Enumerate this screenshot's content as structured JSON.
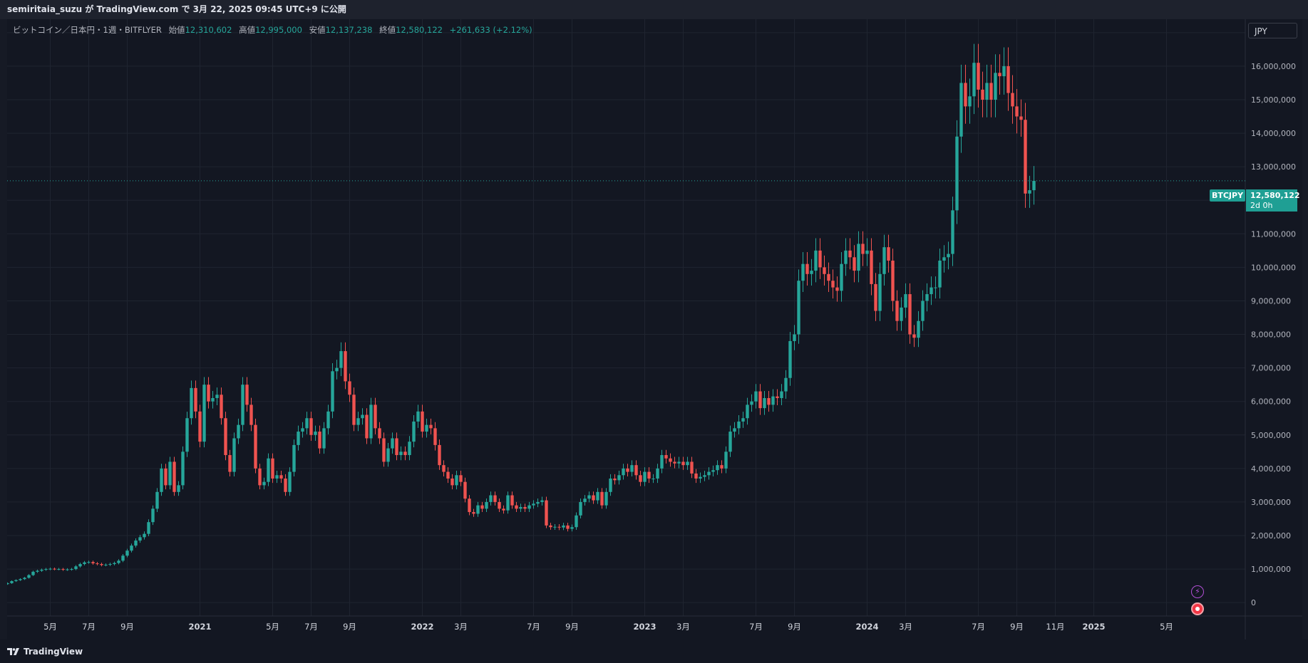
{
  "header": {
    "publish_line": "semiritaia_suzu が TradingView.com で 3月 22, 2025 09:45 UTC+9 に公開"
  },
  "legend": {
    "symbol_line": "ビットコイン／日本円・1週・BITFLYER",
    "open_label": "始値",
    "open_value": "12,310,602",
    "high_label": "高値",
    "high_value": "12,995,000",
    "low_label": "安値",
    "low_value": "12,137,238",
    "close_label": "終値",
    "close_value": "12,580,122",
    "change": "+261,633 (+2.12%)"
  },
  "currency_button": "JPY",
  "price_label": {
    "symbol": "BTCJPY",
    "price": "12,580,122",
    "countdown": "2d 0h"
  },
  "footer": {
    "brand": "TradingView"
  },
  "colors": {
    "up": "#26a69a",
    "down": "#ef5350",
    "background": "#131722",
    "grid": "#1f2430"
  },
  "icons": [
    "flash-icon",
    "record-icon",
    "tradingview-logo-icon"
  ],
  "chart_data": {
    "type": "candlestick",
    "title": "ビットコイン／日本円・1週・BITFLYER",
    "ylim": [
      -400000,
      17400000
    ],
    "y_ticks": [
      0,
      1000000,
      2000000,
      3000000,
      4000000,
      5000000,
      6000000,
      7000000,
      8000000,
      9000000,
      10000000,
      11000000,
      12000000,
      13000000,
      14000000,
      15000000,
      16000000,
      17000000
    ],
    "y_tick_labels": [
      "0",
      "1,000,000",
      "2,000,000",
      "3,000,000",
      "4,000,000",
      "5,000,000",
      "6,000,000",
      "7,000,000",
      "8,000,000",
      "9,000,000",
      "10,000,000",
      "11,000,000",
      "12,000,000",
      "13,000,000",
      "14,000,000",
      "15,000,000",
      "16,000,000",
      "17,000,000"
    ],
    "x_ticks": [
      {
        "label": "5月",
        "week": 10
      },
      {
        "label": "7月",
        "week": 19
      },
      {
        "label": "9月",
        "week": 28
      },
      {
        "label": "2021",
        "week": 45
      },
      {
        "label": "5月",
        "week": 62
      },
      {
        "label": "7月",
        "week": 71
      },
      {
        "label": "9月",
        "week": 80
      },
      {
        "label": "2022",
        "week": 97
      },
      {
        "label": "3月",
        "week": 106
      },
      {
        "label": "7月",
        "week": 123
      },
      {
        "label": "9月",
        "week": 132
      },
      {
        "label": "2023",
        "week": 149
      },
      {
        "label": "3月",
        "week": 158
      },
      {
        "label": "7月",
        "week": 175
      },
      {
        "label": "9月",
        "week": 184
      },
      {
        "label": "2024",
        "week": 201
      },
      {
        "label": "3月",
        "week": 210
      },
      {
        "label": "7月",
        "week": 227
      },
      {
        "label": "9月",
        "week": 236
      },
      {
        "label": "11月",
        "week": 245
      },
      {
        "label": "2025",
        "week": 254
      },
      {
        "label": "5月",
        "week": 271
      }
    ],
    "x_tick_bold": [
      "2021",
      "2022",
      "2023",
      "2024",
      "2025"
    ],
    "last_close": 12580122,
    "weekly_closes": [
      580000,
      640000,
      670000,
      700000,
      740000,
      820000,
      920000,
      950000,
      980000,
      1000000,
      1010000,
      1000000,
      1000000,
      980000,
      990000,
      1000000,
      1080000,
      1150000,
      1200000,
      1210000,
      1170000,
      1150000,
      1120000,
      1130000,
      1150000,
      1180000,
      1250000,
      1400000,
      1550000,
      1700000,
      1850000,
      1950000,
      2050000,
      2400000,
      2800000,
      3300000,
      4000000,
      3500000,
      4200000,
      3300000,
      3500000,
      4500000,
      5500000,
      6400000,
      5700000,
      4800000,
      6500000,
      6000000,
      6100000,
      6200000,
      5500000,
      4400000,
      3900000,
      4900000,
      5300000,
      6500000,
      5900000,
      5300000,
      4000000,
      3500000,
      3600000,
      4300000,
      3700000,
      3800000,
      3700000,
      3300000,
      3900000,
      4700000,
      5100000,
      5200000,
      5500000,
      5000000,
      5100000,
      4600000,
      5200000,
      5700000,
      6900000,
      7000000,
      7500000,
      6600000,
      6200000,
      5300000,
      5500000,
      5600000,
      4900000,
      5900000,
      5200000,
      4900000,
      4200000,
      4600000,
      4900000,
      4400000,
      4500000,
      4400000,
      4800000,
      5400000,
      5700000,
      5100000,
      5300000,
      5200000,
      4700000,
      4100000,
      3900000,
      3700000,
      3500000,
      3800000,
      3600000,
      3100000,
      2700000,
      2650000,
      2900000,
      2800000,
      3000000,
      3200000,
      3000000,
      2800000,
      2750000,
      3200000,
      2900000,
      2800000,
      2850000,
      2800000,
      2900000,
      2950000,
      3000000,
      3050000,
      2300000,
      2250000,
      2260000,
      2240000,
      2300000,
      2200000,
      2250000,
      2600000,
      3000000,
      3100000,
      3200000,
      3050000,
      3300000,
      2900000,
      3300000,
      3700000,
      3650000,
      3800000,
      4000000,
      3900000,
      4100000,
      3800000,
      3600000,
      3900000,
      3700000,
      3700000,
      4000000,
      4400000,
      4300000,
      4200000,
      4150000,
      4200000,
      4100000,
      4200000,
      3850000,
      3700000,
      3750000,
      3800000,
      3900000,
      3950000,
      4100000,
      4000000,
      4500000,
      5100000,
      5200000,
      5400000,
      5500000,
      5900000,
      6000000,
      6300000,
      5800000,
      6100000,
      5900000,
      6150000,
      6100000,
      6300000,
      6700000,
      7800000,
      8000000,
      9600000,
      10100000,
      9800000,
      9900000,
      10500000,
      10000000,
      9800000,
      9600000,
      9400000,
      9300000,
      10100000,
      10500000,
      10300000,
      9900000,
      10700000,
      10400000,
      10500000,
      9500000,
      8700000,
      9800000,
      10600000,
      10200000,
      9000000,
      8400000,
      8800000,
      9200000,
      8000000,
      7900000,
      8400000,
      9000000,
      9200000,
      9400000,
      9400000,
      10200000,
      10300000,
      10400000,
      11700000,
      13900000,
      15500000,
      14800000,
      15100000,
      16100000,
      15300000,
      15000000,
      15500000,
      15000000,
      15800000,
      15700000,
      16000000,
      15200000,
      14800000,
      14500000,
      14400000,
      12200000,
      12300000,
      12580122
    ]
  }
}
